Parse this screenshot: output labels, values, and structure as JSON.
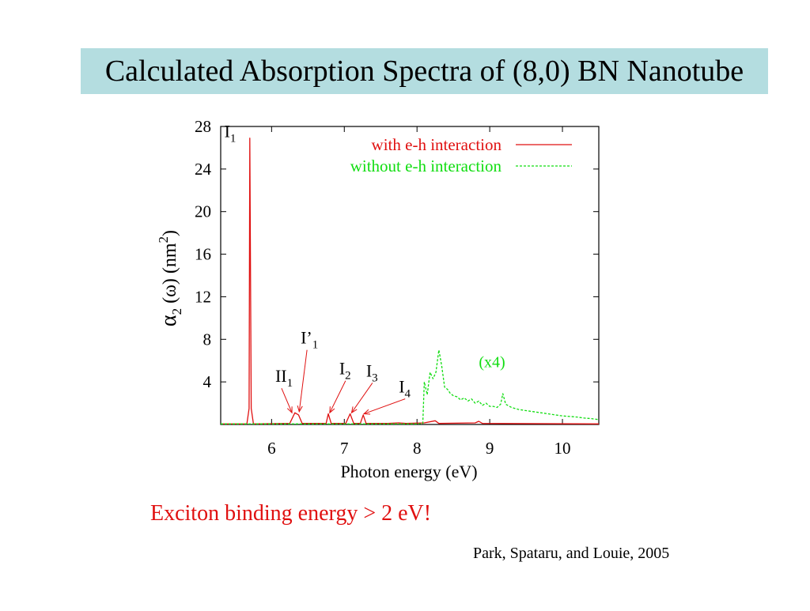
{
  "slide": {
    "title": "Calculated Absorption Spectra of (8,0) BN Nanotube",
    "conclusion": "Exciton binding energy > 2 eV!",
    "citation": "Park, Spataru, and Louie, 2005"
  },
  "colors": {
    "title_bg": "#b4dde0",
    "with_eh": "#e01010",
    "without_eh": "#10dd10",
    "conclusion": "#e01010"
  },
  "chart_data": {
    "type": "line",
    "xlabel": "Photon energy (eV)",
    "ylabel_parts": [
      "α",
      "2",
      " (ω)  (nm",
      "2",
      ")"
    ],
    "xlim": [
      5.3,
      10.5
    ],
    "ylim": [
      0,
      28
    ],
    "x_ticks": [
      6,
      7,
      8,
      9,
      10
    ],
    "y_ticks": [
      4,
      8,
      12,
      16,
      20,
      24,
      28
    ],
    "grid": false,
    "legend_position": "top-right",
    "series": [
      {
        "name": "with e-h interaction",
        "style": "solid",
        "color": "#e01010",
        "points": [
          [
            5.3,
            0.05
          ],
          [
            5.66,
            0.05
          ],
          [
            5.69,
            1.5
          ],
          [
            5.7,
            26.9
          ],
          [
            5.72,
            1.5
          ],
          [
            5.75,
            0.05
          ],
          [
            6.25,
            0.1
          ],
          [
            6.32,
            1.1
          ],
          [
            6.37,
            0.9
          ],
          [
            6.42,
            0.1
          ],
          [
            6.75,
            0.1
          ],
          [
            6.78,
            1.0
          ],
          [
            6.82,
            0.1
          ],
          [
            7.02,
            0.1
          ],
          [
            7.08,
            1.0
          ],
          [
            7.13,
            0.1
          ],
          [
            7.22,
            0.1
          ],
          [
            7.26,
            0.9
          ],
          [
            7.3,
            0.1
          ],
          [
            7.6,
            0.1
          ],
          [
            7.75,
            0.15
          ],
          [
            7.85,
            0.1
          ],
          [
            8.1,
            0.15
          ],
          [
            8.25,
            0.35
          ],
          [
            8.3,
            0.1
          ],
          [
            8.8,
            0.15
          ],
          [
            8.85,
            0.3
          ],
          [
            8.9,
            0.1
          ],
          [
            10.5,
            0.05
          ]
        ]
      },
      {
        "name": "without e-h interaction",
        "style": "dashed",
        "color": "#10dd10",
        "points": [
          [
            5.3,
            0.05
          ],
          [
            8.0,
            0.05
          ],
          [
            8.08,
            0.1
          ],
          [
            8.1,
            4.0
          ],
          [
            8.14,
            2.8
          ],
          [
            8.18,
            4.9
          ],
          [
            8.22,
            4.3
          ],
          [
            8.26,
            4.9
          ],
          [
            8.3,
            7.0
          ],
          [
            8.34,
            5.5
          ],
          [
            8.38,
            3.5
          ],
          [
            8.42,
            3.3
          ],
          [
            8.46,
            2.9
          ],
          [
            8.5,
            2.7
          ],
          [
            8.55,
            2.6
          ],
          [
            8.6,
            2.3
          ],
          [
            8.65,
            2.5
          ],
          [
            8.7,
            2.2
          ],
          [
            8.75,
            2.4
          ],
          [
            8.8,
            2.0
          ],
          [
            8.85,
            2.2
          ],
          [
            8.9,
            1.8
          ],
          [
            8.95,
            2.0
          ],
          [
            9.0,
            1.7
          ],
          [
            9.05,
            1.7
          ],
          [
            9.1,
            1.6
          ],
          [
            9.15,
            1.9
          ],
          [
            9.18,
            2.9
          ],
          [
            9.22,
            1.9
          ],
          [
            9.3,
            1.6
          ],
          [
            9.4,
            1.4
          ],
          [
            9.5,
            1.3
          ],
          [
            9.6,
            1.2
          ],
          [
            9.7,
            1.1
          ],
          [
            9.8,
            1.0
          ],
          [
            9.9,
            0.9
          ],
          [
            10.0,
            0.8
          ],
          [
            10.1,
            0.75
          ],
          [
            10.2,
            0.7
          ],
          [
            10.3,
            0.6
          ],
          [
            10.4,
            0.55
          ],
          [
            10.5,
            0.45
          ]
        ]
      }
    ],
    "annotations": [
      {
        "id": "I1",
        "base": "I",
        "sub": "1",
        "tx": 5.35,
        "ty": 27
      },
      {
        "id": "I-prime-1",
        "base": "I’",
        "sub": "1",
        "tx": 6.4,
        "ty": 7.6,
        "ax": 6.38,
        "ay": 1.2
      },
      {
        "id": "II1",
        "base": "II",
        "sub": "1",
        "tx": 6.05,
        "ty": 4.0,
        "ax": 6.28,
        "ay": 1.1
      },
      {
        "id": "I2",
        "base": "I",
        "sub": "2",
        "tx": 6.93,
        "ty": 4.7,
        "ax": 6.8,
        "ay": 1.1
      },
      {
        "id": "I3",
        "base": "I",
        "sub": "3",
        "tx": 7.3,
        "ty": 4.5,
        "ax": 7.1,
        "ay": 1.1
      },
      {
        "id": "I4",
        "base": "I",
        "sub": "4",
        "tx": 7.75,
        "ty": 3.0,
        "ax": 7.27,
        "ay": 1.0
      },
      {
        "id": "x4",
        "text": "(x4)",
        "tx": 8.85,
        "ty": 5.4,
        "color": "#10dd10"
      }
    ]
  }
}
